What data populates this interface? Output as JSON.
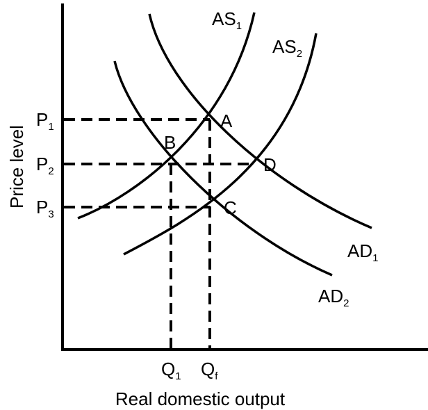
{
  "curves": [
    {
      "main": "AS",
      "sub": "1"
    },
    {
      "main": "AS",
      "sub": "2"
    },
    {
      "main": "AD",
      "sub": "1"
    },
    {
      "main": "AD",
      "sub": "2"
    }
  ],
  "points": [
    "A",
    "B",
    "C",
    "D"
  ],
  "y_axis": {
    "title": "Price level",
    "ticks": [
      {
        "main": "P",
        "sub": "1"
      },
      {
        "main": "P",
        "sub": "2"
      },
      {
        "main": "P",
        "sub": "3"
      }
    ]
  },
  "x_axis": {
    "title": "Real domestic output",
    "ticks": [
      {
        "main": "Q",
        "sub": "1"
      },
      {
        "main": "Q",
        "sub": "f"
      }
    ]
  }
}
